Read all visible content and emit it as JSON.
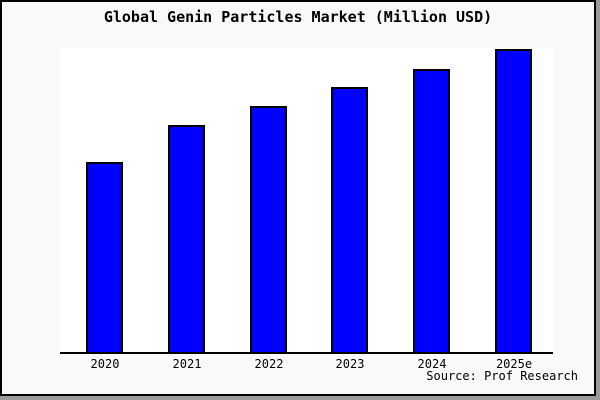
{
  "window": {
    "background": "#f9f9f9",
    "plot_background": "#ffffff",
    "border_color": "#000000",
    "shadow_color": "#9b9b9b"
  },
  "title": "Global Genin Particles Market (Million USD)",
  "source_note": "Source: Prof Research",
  "chart_data": {
    "type": "bar",
    "title": "Global Genin Particles Market (Million USD)",
    "categories": [
      "2020",
      "2021",
      "2022",
      "2023",
      "2024",
      "2025e"
    ],
    "values": [
      62.5,
      74.8,
      81.1,
      87.4,
      93.4,
      100
    ],
    "value_scale": "relative units; y-axis unlabeled, heights normalized to 2025e = 100",
    "xlabel": "",
    "ylabel": "",
    "ylim": [
      0,
      101
    ],
    "grid": false,
    "legend": false,
    "bar_color": "#0000ff",
    "bar_border_color": "#000000",
    "source_note": "Source: Prof Research"
  }
}
